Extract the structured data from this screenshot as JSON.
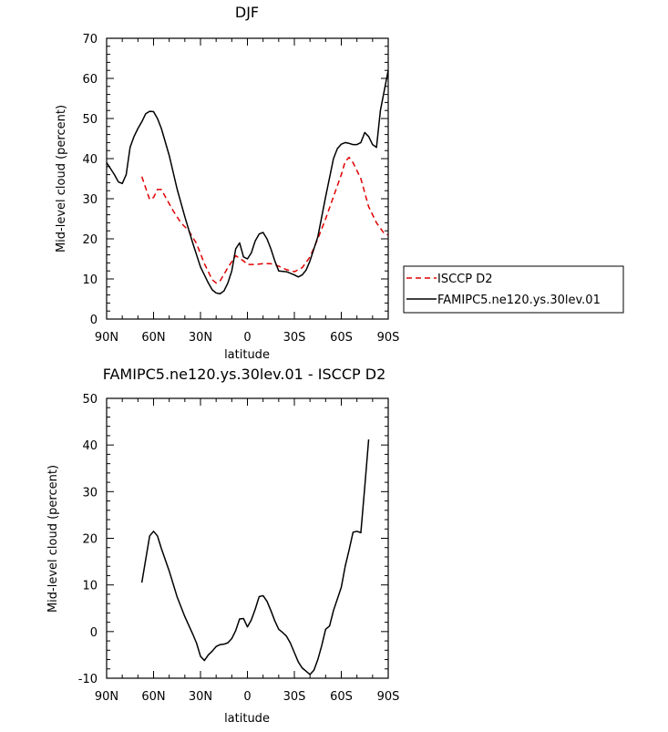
{
  "chart_data": [
    {
      "type": "line",
      "title": "DJF",
      "xlabel": "latitude",
      "ylabel": "Mid-level cloud (percent)",
      "xlim": [
        90,
        -90
      ],
      "ylim": [
        0,
        70
      ],
      "x_tick_values": [
        90,
        60,
        30,
        0,
        -30,
        -60,
        -90
      ],
      "x_tick_labels": [
        "90N",
        "60N",
        "30N",
        "0",
        "30S",
        "60S",
        "90S"
      ],
      "y_ticks": [
        0,
        10,
        20,
        30,
        40,
        50,
        60,
        70
      ],
      "legend": "right",
      "series": [
        {
          "name": "ISCCP D2",
          "color": "#e00000",
          "dash": "dashed",
          "points": [
            [
              67.5,
              35.5
            ],
            [
              62.5,
              29.8
            ],
            [
              60,
              30.3
            ],
            [
              57.5,
              32.3
            ],
            [
              55,
              32.3
            ],
            [
              52.5,
              30.5
            ],
            [
              47.5,
              27
            ],
            [
              42.5,
              24
            ],
            [
              37.5,
              22
            ],
            [
              32.5,
              18.8
            ],
            [
              27.5,
              13.8
            ],
            [
              22.5,
              9.8
            ],
            [
              20,
              9.0
            ],
            [
              17.5,
              9.5
            ],
            [
              12.5,
              12.8
            ],
            [
              7.5,
              15.8
            ],
            [
              2.5,
              14.5
            ],
            [
              0,
              13.6
            ],
            [
              -5,
              13.6
            ],
            [
              -10,
              13.8
            ],
            [
              -15,
              13.8
            ],
            [
              -20,
              13.2
            ],
            [
              -25,
              12.3
            ],
            [
              -30,
              11.8
            ],
            [
              -35,
              12.8
            ],
            [
              -40,
              15.5
            ],
            [
              -45,
              20
            ],
            [
              -50,
              25
            ],
            [
              -55,
              30.5
            ],
            [
              -60,
              36
            ],
            [
              -62.5,
              39.3
            ],
            [
              -65,
              40.3
            ],
            [
              -67.5,
              39
            ],
            [
              -72.5,
              35
            ],
            [
              -77.5,
              28
            ],
            [
              -82.5,
              24
            ],
            [
              -87.5,
              21.3
            ],
            [
              -90,
              21
            ]
          ]
        },
        {
          "name": "FAMIPC5.ne120.ys.30lev.01",
          "color": "#000000",
          "dash": "solid",
          "points": [
            [
              90,
              39
            ],
            [
              85,
              36
            ],
            [
              82.5,
              34.2
            ],
            [
              80,
              33.8
            ],
            [
              77.5,
              36
            ],
            [
              75,
              42.8
            ],
            [
              72.5,
              45.5
            ],
            [
              70,
              47.5
            ],
            [
              67.5,
              49.2
            ],
            [
              65,
              51.2
            ],
            [
              62.5,
              51.8
            ],
            [
              60,
              51.7
            ],
            [
              57.5,
              50
            ],
            [
              55,
              47.5
            ],
            [
              50,
              40.8
            ],
            [
              45,
              32.5
            ],
            [
              40,
              25.5
            ],
            [
              35,
              19
            ],
            [
              30,
              13
            ],
            [
              25,
              9
            ],
            [
              22.5,
              7.3
            ],
            [
              20,
              6.5
            ],
            [
              17.5,
              6.3
            ],
            [
              15,
              7
            ],
            [
              12.5,
              9
            ],
            [
              10,
              12
            ],
            [
              7.5,
              17.5
            ],
            [
              5,
              19
            ],
            [
              2.5,
              15.5
            ],
            [
              0,
              15
            ],
            [
              -2.5,
              16.5
            ],
            [
              -5,
              19.5
            ],
            [
              -7.5,
              21.2
            ],
            [
              -10,
              21.6
            ],
            [
              -12.5,
              20
            ],
            [
              -15,
              17.5
            ],
            [
              -17.5,
              14.5
            ],
            [
              -20,
              12
            ],
            [
              -25,
              11.8
            ],
            [
              -30,
              11
            ],
            [
              -32.5,
              10.5
            ],
            [
              -35,
              11
            ],
            [
              -37.5,
              12.2
            ],
            [
              -40,
              14.5
            ],
            [
              -45,
              20.5
            ],
            [
              -50,
              30.5
            ],
            [
              -55,
              40
            ],
            [
              -57.5,
              42.5
            ],
            [
              -60,
              43.6
            ],
            [
              -62.5,
              44
            ],
            [
              -65,
              43.8
            ],
            [
              -67.5,
              43.5
            ],
            [
              -70,
              43.5
            ],
            [
              -72.5,
              44
            ],
            [
              -75,
              46.5
            ],
            [
              -77.5,
              45.5
            ],
            [
              -80,
              43.5
            ],
            [
              -82.5,
              42.8
            ],
            [
              -85,
              52
            ],
            [
              -90,
              62
            ]
          ]
        }
      ]
    },
    {
      "type": "line",
      "title": "FAMIPC5.ne120.ys.30lev.01 - ISCCP D2",
      "xlabel": "latitude",
      "ylabel": "Mid-level cloud (percent)",
      "xlim": [
        90,
        -90
      ],
      "ylim": [
        -10,
        50
      ],
      "x_tick_values": [
        90,
        60,
        30,
        0,
        -30,
        -60,
        -90
      ],
      "x_tick_labels": [
        "90N",
        "60N",
        "30N",
        "0",
        "30S",
        "60S",
        "90S"
      ],
      "y_ticks": [
        -10,
        0,
        10,
        20,
        30,
        40,
        50
      ],
      "legend": "none",
      "series": [
        {
          "color": "#000000",
          "dash": "solid",
          "points": [
            [
              67.5,
              10.5
            ],
            [
              65,
              15.5
            ],
            [
              62.5,
              20.5
            ],
            [
              60,
              21.5
            ],
            [
              57.5,
              20.5
            ],
            [
              55,
              17.8
            ],
            [
              50,
              13
            ],
            [
              45,
              7.5
            ],
            [
              40,
              3.2
            ],
            [
              35,
              -0.5
            ],
            [
              32.5,
              -2.5
            ],
            [
              30,
              -5.3
            ],
            [
              27.5,
              -6.2
            ],
            [
              25,
              -5
            ],
            [
              22.5,
              -4.2
            ],
            [
              20,
              -3.2
            ],
            [
              17.5,
              -2.8
            ],
            [
              15,
              -2.7
            ],
            [
              12.5,
              -2.4
            ],
            [
              10,
              -1.5
            ],
            [
              7.5,
              0.2
            ],
            [
              5,
              2.7
            ],
            [
              2.5,
              2.8
            ],
            [
              0,
              1
            ],
            [
              -2.5,
              2.5
            ],
            [
              -5,
              4.8
            ],
            [
              -7.5,
              7.5
            ],
            [
              -10,
              7.7
            ],
            [
              -12.5,
              6.5
            ],
            [
              -15,
              4.5
            ],
            [
              -17.5,
              2.3
            ],
            [
              -20,
              0.5
            ],
            [
              -22.5,
              -0.2
            ],
            [
              -25,
              -1
            ],
            [
              -27.5,
              -2.5
            ],
            [
              -30,
              -4.5
            ],
            [
              -32.5,
              -6.5
            ],
            [
              -35,
              -7.8
            ],
            [
              -37.5,
              -8.5
            ],
            [
              -40,
              -9.2
            ],
            [
              -42.5,
              -8.3
            ],
            [
              -45,
              -6
            ],
            [
              -47.5,
              -3
            ],
            [
              -50,
              0.5
            ],
            [
              -52.5,
              1.2
            ],
            [
              -55,
              4.5
            ],
            [
              -57.5,
              7
            ],
            [
              -60,
              9.5
            ],
            [
              -62.5,
              14
            ],
            [
              -65,
              17.5
            ],
            [
              -67.5,
              21.3
            ],
            [
              -70,
              21.5
            ],
            [
              -72.5,
              21.2
            ],
            [
              -75,
              31
            ],
            [
              -77.5,
              41.2
            ]
          ]
        }
      ]
    }
  ]
}
